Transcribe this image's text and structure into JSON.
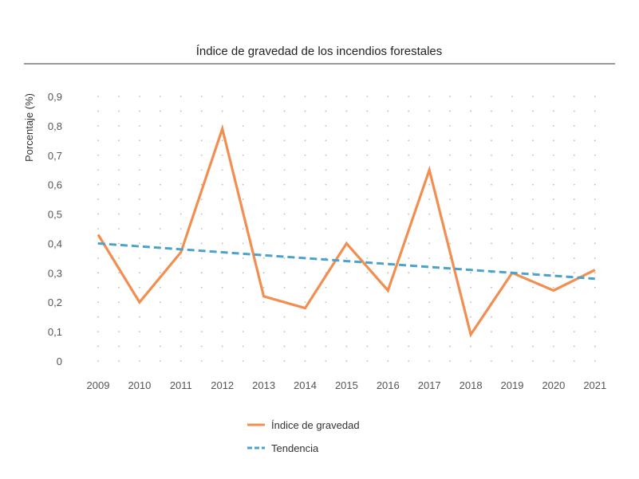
{
  "chart_data": {
    "type": "line",
    "title": "Índice de gravedad de los incendios forestales",
    "xlabel": "",
    "ylabel": "Porcentaje (%)",
    "categories": [
      "2009",
      "2010",
      "2011",
      "2012",
      "2013",
      "2014",
      "2015",
      "2016",
      "2017",
      "2018",
      "2019",
      "2020",
      "2021"
    ],
    "yticks": [
      "0",
      "0,1",
      "0,2",
      "0,3",
      "0,4",
      "0,5",
      "0,6",
      "0,7",
      "0,8",
      "0,9"
    ],
    "ylim": [
      0,
      0.9
    ],
    "grid": "dotted",
    "legend_position": "bottom",
    "series": [
      {
        "name": "Índice de gravedad",
        "color": "#f28e50",
        "style": "solid",
        "values": [
          0.43,
          0.2,
          0.37,
          0.79,
          0.22,
          0.18,
          0.4,
          0.24,
          0.65,
          0.09,
          0.3,
          0.24,
          0.31
        ]
      },
      {
        "name": "Tendencia",
        "color": "#4ba3cc",
        "style": "dashed",
        "values": [
          0.4,
          0.39,
          0.38,
          0.37,
          0.36,
          0.35,
          0.34,
          0.33,
          0.32,
          0.31,
          0.3,
          0.29,
          0.28
        ]
      }
    ]
  }
}
